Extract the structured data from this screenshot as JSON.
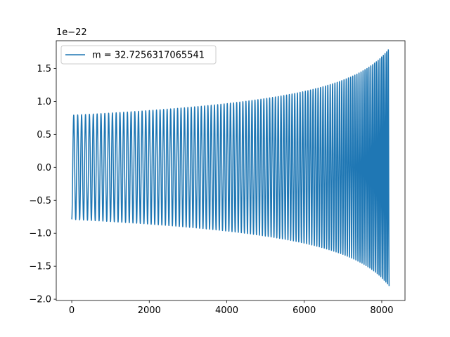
{
  "chart_data": {
    "type": "line",
    "title": "",
    "xlabel": "",
    "ylabel": "",
    "y_offset_label": "1e−22",
    "xlim": [
      -400,
      8600
    ],
    "ylim": [
      -2.02,
      1.92
    ],
    "x_ticks": [
      0,
      2000,
      4000,
      6000,
      8000
    ],
    "x_tick_labels": [
      "0",
      "2000",
      "4000",
      "6000",
      "8000"
    ],
    "y_ticks": [
      -2.0,
      -1.5,
      -1.0,
      -0.5,
      0.0,
      0.5,
      1.0,
      1.5
    ],
    "y_tick_labels": [
      "−2.0",
      "−1.5",
      "−1.0",
      "−0.5",
      "0.0",
      "0.5",
      "1.0",
      "1.5"
    ],
    "grid": false,
    "legend_position": "upper-left",
    "series": [
      {
        "name": "m = 32.7256317065541",
        "color": "#1f77b4",
        "description": "chirp waveform, amplitude grows from ~0.8 to ~1.8 (×1e-22) near x≈8190",
        "x_start": 0,
        "x_end": 8190,
        "start_value": -0.79,
        "amplitude_start": 0.79,
        "amplitude_end": 1.8,
        "cycles": 110
      }
    ]
  }
}
